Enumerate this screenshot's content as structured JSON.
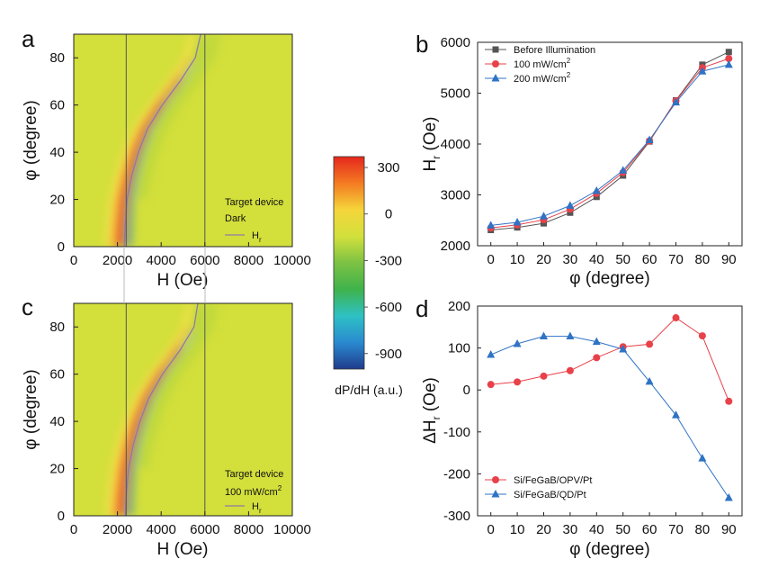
{
  "chart_data": [
    {
      "type": "heatmap",
      "panel_label": "a",
      "xlabel": "H (Oe)",
      "ylabel": "φ (degree)",
      "xlim": [
        0,
        10000
      ],
      "ylim": [
        0,
        90
      ],
      "x_ticks": [
        "0",
        "2000",
        "4000",
        "6000",
        "8000",
        "10000"
      ],
      "y_ticks": [
        "0",
        "20",
        "40",
        "60",
        "80"
      ],
      "legend": [
        "Target device",
        "Dark"
      ],
      "line_label": {
        "base": "H",
        "sub": "r"
      },
      "resonance_curve": {
        "phi": [
          0,
          10,
          20,
          30,
          40,
          50,
          60,
          70,
          80,
          90
        ],
        "H": [
          2310,
          2360,
          2440,
          2650,
          2960,
          3380,
          4050,
          4860,
          5560,
          5810
        ]
      },
      "reference_lines_H": [
        2400,
        6000
      ]
    },
    {
      "type": "line",
      "panel_label": "b",
      "xlabel": "φ (degree)",
      "ylabel": {
        "base": "H",
        "sub": "r",
        "rest": " (Oe)"
      },
      "x": [
        0,
        10,
        20,
        30,
        40,
        50,
        60,
        70,
        80,
        90
      ],
      "xlim": [
        -5,
        95
      ],
      "ylim": [
        2000,
        6000
      ],
      "x_ticks": [
        "0",
        "10",
        "20",
        "30",
        "40",
        "50",
        "60",
        "70",
        "80",
        "90"
      ],
      "y_ticks": [
        "2000",
        "3000",
        "4000",
        "5000",
        "6000"
      ],
      "series": [
        {
          "name": "Before Illumination",
          "marker": "square",
          "color": "#555555",
          "values": [
            2310,
            2360,
            2440,
            2650,
            2960,
            3380,
            4050,
            4860,
            5560,
            5810
          ]
        },
        {
          "name": "100 mW/cm",
          "name_sup": "2",
          "marker": "circle",
          "color": "#e8414a",
          "values": [
            2350,
            2410,
            2510,
            2720,
            3030,
            3440,
            4060,
            4850,
            5500,
            5680
          ]
        },
        {
          "name": "200 mW/cm",
          "name_sup": "2",
          "marker": "triangle",
          "color": "#2f73c4",
          "values": [
            2400,
            2460,
            2580,
            2790,
            3080,
            3480,
            4080,
            4820,
            5430,
            5560
          ]
        }
      ],
      "legend_position": "top-left"
    },
    {
      "type": "heatmap",
      "panel_label": "c",
      "xlabel": "H (Oe)",
      "ylabel": "φ (degree)",
      "xlim": [
        0,
        10000
      ],
      "ylim": [
        0,
        90
      ],
      "x_ticks": [
        "0",
        "2000",
        "4000",
        "6000",
        "8000",
        "10000"
      ],
      "y_ticks": [
        "0",
        "20",
        "40",
        "60",
        "80"
      ],
      "legend": [
        "Target device",
        "100 mW/cm",
        "2"
      ],
      "line_label": {
        "base": "H",
        "sub": "r"
      },
      "resonance_curve": {
        "phi": [
          0,
          10,
          20,
          30,
          40,
          50,
          60,
          70,
          80,
          90
        ],
        "H": [
          2350,
          2410,
          2510,
          2720,
          3030,
          3440,
          4060,
          4850,
          5500,
          5680
        ]
      },
      "reference_lines_H": [
        2400,
        6000
      ]
    },
    {
      "type": "line",
      "panel_label": "d",
      "xlabel": "φ (degree)",
      "ylabel": {
        "base": "ΔH",
        "sub": "r",
        "rest": " (Oe)"
      },
      "x": [
        0,
        10,
        20,
        30,
        40,
        50,
        60,
        70,
        80,
        90
      ],
      "xlim": [
        -5,
        95
      ],
      "ylim": [
        -300,
        200
      ],
      "x_ticks": [
        "0",
        "10",
        "20",
        "30",
        "40",
        "50",
        "60",
        "70",
        "80",
        "90"
      ],
      "y_ticks": [
        "-300",
        "-200",
        "-100",
        "0",
        "100",
        "200"
      ],
      "series": [
        {
          "name": "Si/FeGaB/OPV/Pt",
          "marker": "circle",
          "color": "#e8414a",
          "values": [
            13,
            19,
            33,
            46,
            77,
            103,
            109,
            172,
            129,
            -27
          ]
        },
        {
          "name": "Si/FeGaB/QD/Pt",
          "marker": "triangle",
          "color": "#2f73c4",
          "values": [
            84,
            110,
            128,
            128,
            115,
            97,
            20,
            -60,
            -163,
            -257
          ]
        }
      ],
      "legend_position": "bottom-left"
    }
  ],
  "colorbar": {
    "title": "dP/dH (a.u.)",
    "ticks": [
      "300",
      "0",
      "-300",
      "-600",
      "-900"
    ],
    "range": [
      -1000,
      370
    ],
    "colors": [
      "#e5271d",
      "#f47b22",
      "#f5d53a",
      "#d2e03c",
      "#7cc243",
      "#3fb34c",
      "#2ec1c4",
      "#2a8ad0",
      "#203b8c"
    ]
  }
}
